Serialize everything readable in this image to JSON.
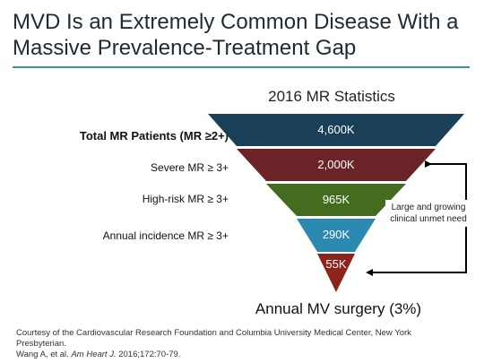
{
  "title_line1": "MVD Is an Extremely Common Disease With a",
  "title_line2": "Massive Prevalence-Treatment Gap",
  "subtitle": "2016 MR Statistics",
  "levels": [
    {
      "label": "Total MR Patients (MR ≥2+)",
      "value": "4,600K",
      "color": "#1a4059"
    },
    {
      "label": "Severe MR ≥ 3+",
      "value": "2,000K",
      "color": "#6c2328"
    },
    {
      "label": "High-risk MR ≥ 3+",
      "value": "965K",
      "color": "#436c1f"
    },
    {
      "label": "Annual incidence MR ≥ 3+",
      "value": "290K",
      "color": "#2c8ab1"
    },
    {
      "label": "",
      "value": "55K",
      "color": "#8d231b"
    }
  ],
  "note": "Large and growing clinical unmet need",
  "bottom_label": "Annual MV surgery (3%)",
  "credit_line1": "Courtesy of the Cardiovascular Research Foundation and Columbia University Medical Center, New York Presbyterian.",
  "credit_line2_a": "Wang A, et al.",
  "credit_line2_journal": "Am Heart J.",
  "credit_line2_b": "2016;172:70-79."
}
